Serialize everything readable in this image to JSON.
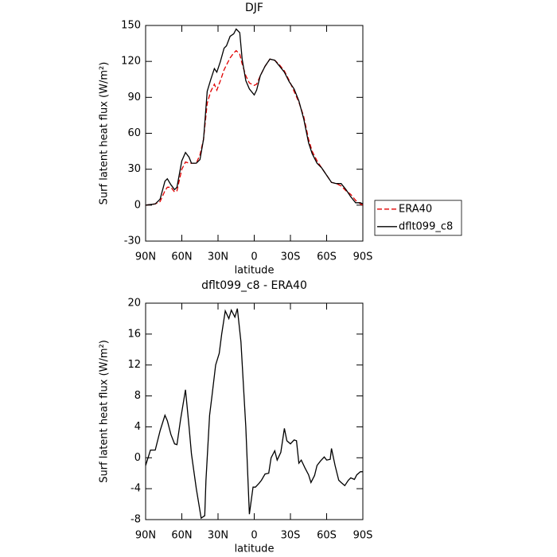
{
  "chart_data": [
    {
      "type": "line",
      "title": "DJF",
      "x_label": "latitude",
      "y_label": "Surf latent heat flux (W/m²)",
      "x": [
        90,
        82,
        78,
        74,
        72,
        69,
        66,
        64,
        60,
        57,
        54,
        52,
        48,
        45,
        42,
        39,
        36,
        33,
        31,
        28,
        25,
        23,
        20,
        17,
        15,
        12,
        10,
        7,
        4,
        0,
        -2,
        -5,
        -9,
        -13,
        -17,
        -21,
        -25,
        -29,
        -33,
        -37,
        -41,
        -45,
        -48,
        -52,
        -56,
        -60,
        -64,
        -68,
        -72,
        -76,
        -80,
        -84,
        -88,
        -90
      ],
      "series": [
        {
          "name": "ERA40",
          "color": "#e00000",
          "line_style": "dashed",
          "values": [
            0,
            1,
            3,
            12,
            15,
            15,
            11,
            12,
            30,
            36,
            35,
            35,
            35,
            42,
            55,
            85,
            95,
            101,
            96,
            104,
            113,
            117,
            123,
            127,
            129,
            126,
            118,
            108,
            102,
            100,
            101,
            108,
            116,
            122,
            121,
            117,
            112,
            104,
            95,
            86,
            74,
            55,
            45,
            37,
            31,
            25,
            19,
            18,
            16,
            12,
            9,
            4,
            1,
            0
          ]
        },
        {
          "name": "dflt099_c8",
          "color": "#000000",
          "line_style": "solid",
          "values": [
            0,
            1,
            5,
            20,
            22,
            17,
            13,
            15,
            37,
            44,
            40,
            35,
            35,
            38,
            55,
            95,
            105,
            114,
            111,
            120,
            131,
            133,
            141,
            143,
            147,
            144,
            122,
            104,
            97,
            92,
            96,
            108,
            116,
            122,
            121,
            116,
            111,
            103,
            97,
            87,
            72,
            52,
            43,
            35,
            31,
            25,
            19,
            18,
            18,
            13,
            7,
            2,
            2,
            1
          ]
        }
      ],
      "xlim": [
        90,
        -90
      ],
      "xticks": [
        {
          "value": 90,
          "label": "90N"
        },
        {
          "value": 60,
          "label": "60N"
        },
        {
          "value": 30,
          "label": "30N"
        },
        0,
        {
          "value": -30,
          "label": "30S"
        },
        {
          "value": -60,
          "label": "60S"
        },
        {
          "value": -90,
          "label": "90S"
        }
      ],
      "ylim": [
        -30,
        150
      ],
      "yticks": [
        -30,
        0,
        30,
        60,
        90,
        120,
        150
      ],
      "legend": "outside-right"
    },
    {
      "type": "line",
      "title": "dflt099_c8 - ERA40",
      "x_label": "latitude",
      "y_label": "Surf latent heat flux (W/m²)",
      "x": [
        90,
        86,
        82,
        78,
        74,
        72,
        69,
        66,
        64,
        61,
        57,
        54,
        52,
        48,
        44,
        41,
        40,
        37,
        35,
        32,
        29,
        27,
        24,
        21,
        19,
        16,
        14,
        11,
        7,
        4,
        1,
        -1,
        -4,
        -6,
        -9,
        -12,
        -14,
        -17,
        -19,
        -22,
        -25,
        -27,
        -30,
        -33,
        -35,
        -37,
        -39,
        -42,
        -45,
        -47,
        -50,
        -52,
        -55,
        -58,
        -60,
        -63,
        -64,
        -67,
        -70,
        -72,
        -75,
        -78,
        -80,
        -83,
        -85,
        -88,
        -90
      ],
      "series": [
        {
          "color": "#000000",
          "line_style": "solid",
          "values": [
            -1,
            1,
            1,
            3.5,
            5.5,
            4.8,
            3,
            1.8,
            1.7,
            5,
            8.8,
            4,
            0.5,
            -4,
            -7.8,
            -7.5,
            -3,
            5.5,
            8,
            12,
            13.5,
            16,
            19,
            18,
            19.1,
            18.2,
            19.3,
            15,
            4,
            -7.3,
            -3.8,
            -3.8,
            -3.3,
            -2.9,
            -2.1,
            -2,
            0,
            0.9,
            -0.3,
            0.7,
            3.8,
            2.2,
            1.8,
            2.3,
            2.2,
            -0.7,
            -0.3,
            -1.3,
            -2.2,
            -3.2,
            -2.3,
            -1,
            -0.4,
            0.1,
            -0.3,
            -0.2,
            1.2,
            -1,
            -2.9,
            -3.2,
            -3.6,
            -2.9,
            -2.6,
            -2.8,
            -2.2,
            -1.8,
            -1.8
          ]
        }
      ],
      "xlim": [
        90,
        -90
      ],
      "xticks": [
        {
          "value": 90,
          "label": "90N"
        },
        {
          "value": 60,
          "label": "60N"
        },
        {
          "value": 30,
          "label": "30N"
        },
        0,
        {
          "value": -30,
          "label": "30S"
        },
        {
          "value": -60,
          "label": "60S"
        },
        {
          "value": -90,
          "label": "90S"
        }
      ],
      "ylim": [
        -8,
        20
      ],
      "yticks": [
        -8,
        -4,
        0,
        4,
        8,
        12,
        16,
        20
      ]
    }
  ]
}
